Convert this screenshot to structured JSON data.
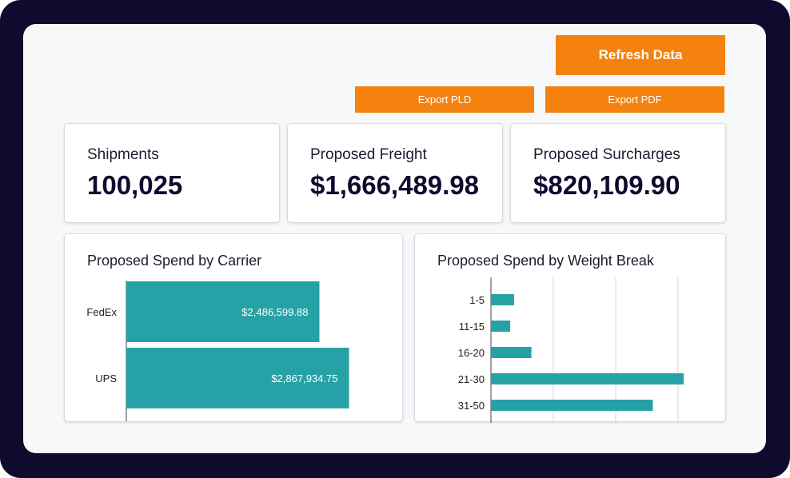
{
  "actions": {
    "refresh_label": "Refresh Data",
    "export_pld_label": "Export PLD",
    "export_pdf_label": "Export PDF"
  },
  "kpis": [
    {
      "label": "Shipments",
      "value": "100,025"
    },
    {
      "label": "Proposed Freight",
      "value": "$1,666,489.98"
    },
    {
      "label": "Proposed Surcharges",
      "value": "$820,109.90"
    }
  ],
  "colors": {
    "frame": "#0f0b2e",
    "accent": "#f5820f",
    "bar": "#26a2a6"
  },
  "chart_data": [
    {
      "type": "bar",
      "orientation": "horizontal",
      "title": "Proposed Spend by Carrier",
      "categories": [
        "FedEx",
        "UPS"
      ],
      "values": [
        2486599.88,
        2867934.75
      ],
      "value_labels": [
        "$2,486,599.88",
        "$2,867,934.75"
      ],
      "xlim": [
        0,
        3450000
      ]
    },
    {
      "type": "bar",
      "orientation": "horizontal",
      "title": "Proposed Spend by Weight Break",
      "categories": [
        "1-5",
        "11-15",
        "16-20",
        "21-30",
        "31-50"
      ],
      "values": [
        0.12,
        0.1,
        0.21,
        1.0,
        0.84
      ],
      "grid": true
    }
  ]
}
